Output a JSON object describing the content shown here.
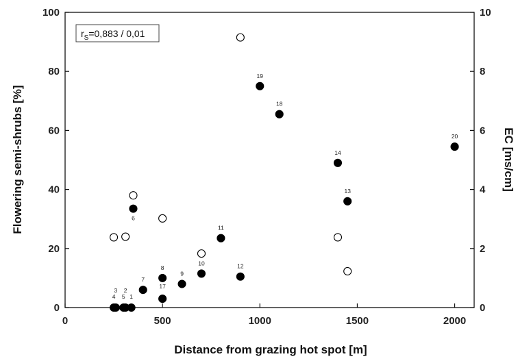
{
  "chart_data": {
    "type": "scatter",
    "xlabel": "Distance from grazing hot spot [m]",
    "ylabel": "Flowering semi-shrubs [%]",
    "y2label": "EC [ms/cm]",
    "xlim": [
      0,
      2100
    ],
    "ylim": [
      0,
      100
    ],
    "y2lim": [
      0,
      10
    ],
    "xticks": [
      "0",
      "500",
      "1000",
      "1500",
      "2000"
    ],
    "yticks": [
      "0",
      "20",
      "40",
      "60",
      "80",
      "100"
    ],
    "y2ticks": [
      "0",
      "2",
      "4",
      "6",
      "8",
      "10"
    ],
    "annotation": {
      "r": "r",
      "sub": "S",
      "text": "=0,883 / 0,01"
    },
    "grid": false,
    "series": [
      {
        "marker": "filled-circle",
        "axis": "left",
        "points": [
          {
            "x": 250,
            "y": 0,
            "label": "4"
          },
          {
            "x": 260,
            "y": 0,
            "label": "3"
          },
          {
            "x": 300,
            "y": 0,
            "label": "5"
          },
          {
            "x": 310,
            "y": 0,
            "label": "2"
          },
          {
            "x": 340,
            "y": 0,
            "label": "1"
          },
          {
            "x": 350,
            "y": 33.5,
            "label": "6"
          },
          {
            "x": 400,
            "y": 6,
            "label": "7"
          },
          {
            "x": 500,
            "y": 10,
            "label": "8"
          },
          {
            "x": 500,
            "y": 3,
            "label": "17"
          },
          {
            "x": 600,
            "y": 8,
            "label": "9"
          },
          {
            "x": 700,
            "y": 11.5,
            "label": "10"
          },
          {
            "x": 800,
            "y": 23.5,
            "label": "11"
          },
          {
            "x": 900,
            "y": 10.5,
            "label": "12"
          },
          {
            "x": 1000,
            "y": 75,
            "label": "19"
          },
          {
            "x": 1100,
            "y": 65.5,
            "label": "18"
          },
          {
            "x": 1400,
            "y": 49,
            "label": "14"
          },
          {
            "x": 1450,
            "y": 36,
            "label": "13"
          },
          {
            "x": 2000,
            "y": 54.5,
            "label": "20"
          }
        ]
      },
      {
        "marker": "open-circle",
        "axis": "right",
        "points": [
          {
            "x": 250,
            "y": 2.38
          },
          {
            "x": 310,
            "y": 2.4
          },
          {
            "x": 350,
            "y": 3.8
          },
          {
            "x": 500,
            "y": 3.02
          },
          {
            "x": 700,
            "y": 1.83
          },
          {
            "x": 900,
            "y": 9.15
          },
          {
            "x": 1400,
            "y": 2.38
          },
          {
            "x": 1450,
            "y": 1.23
          }
        ]
      }
    ]
  }
}
